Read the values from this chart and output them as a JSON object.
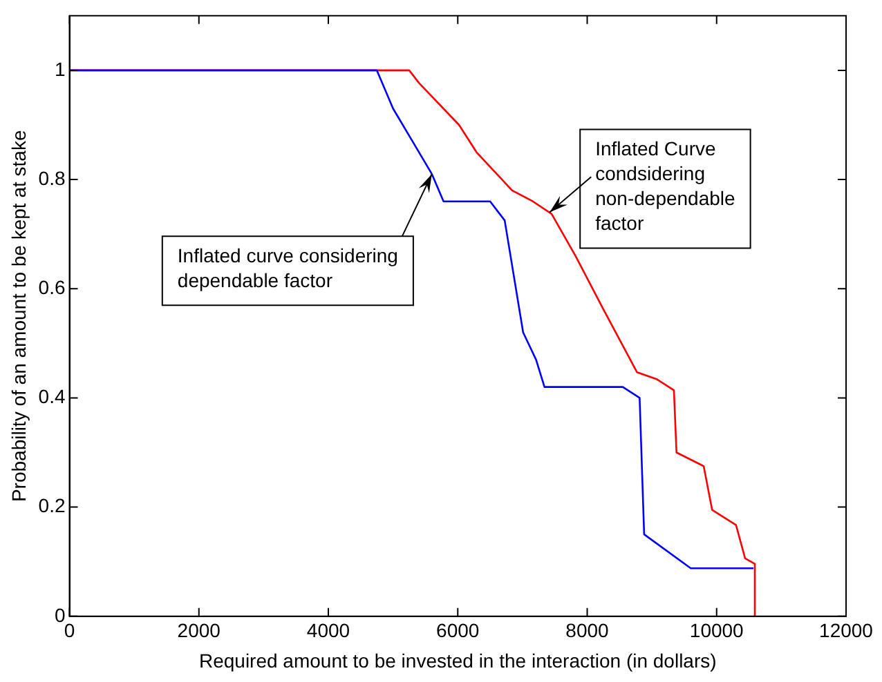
{
  "chart_data": {
    "type": "line",
    "xlabel": "Required amount to be invested in the interaction (in dollars)",
    "ylabel": "Probability of an amount to be kept at stake",
    "xlim": [
      0,
      12000
    ],
    "xticks": [
      0,
      2000,
      4000,
      6000,
      8000,
      10000,
      12000
    ],
    "ylim": [
      0,
      1.1
    ],
    "yticks": [
      0,
      0.2,
      0.4,
      0.6,
      0.8,
      1
    ],
    "grid": false,
    "legend": false,
    "marker": "none",
    "line_style": "solid",
    "series": [
      {
        "color": "#0000ff",
        "x": [
          0,
          4750,
          5000,
          5300,
          5600,
          5780,
          6500,
          6725,
          7010,
          7210,
          7340,
          8550,
          8810,
          8880,
          9600,
          10570
        ],
        "values": [
          1,
          1,
          0.93,
          0.87,
          0.81,
          0.76,
          0.76,
          0.725,
          0.52,
          0.47,
          0.42,
          0.42,
          0.4,
          0.15,
          0.088,
          0.088
        ]
      },
      {
        "color": "#ff0000",
        "x": [
          0,
          5250,
          5400,
          6020,
          6290,
          6840,
          7160,
          7450,
          7820,
          8040,
          8260,
          8770,
          9080,
          9340,
          9380,
          9800,
          9930,
          10300,
          10440,
          10590,
          10590
        ],
        "values": [
          1,
          1,
          0.977,
          0.9,
          0.85,
          0.78,
          0.76,
          0.737,
          0.66,
          0.61,
          0.56,
          0.447,
          0.434,
          0.414,
          0.3,
          0.275,
          0.195,
          0.167,
          0.106,
          0.096,
          0
        ]
      }
    ],
    "annotations": [
      {
        "text": "Inflated curve considering\ndependable factor",
        "x": 5600,
        "y": 0.81
      },
      {
        "text": "Inflated Curve\ncondsidering\nnon-dependable\nfactor",
        "x": 7420,
        "y": 0.74
      }
    ]
  }
}
